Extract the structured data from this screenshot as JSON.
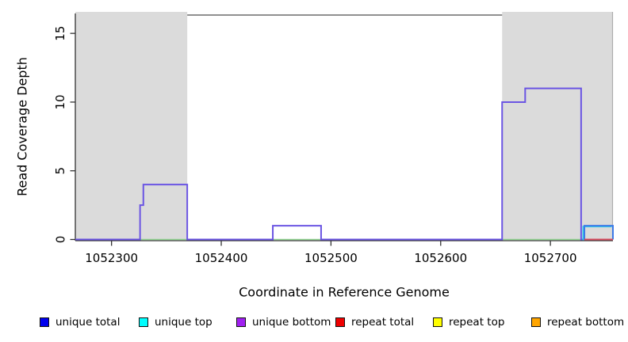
{
  "chart_data": {
    "type": "line",
    "subtype": "step-coverage",
    "title": "",
    "xlabel": "Coordinate in Reference Genome",
    "ylabel": "Read Coverage Depth",
    "xlim": [
      1052267,
      1052757
    ],
    "ylim": [
      0,
      16.45
    ],
    "x_ticks": [
      1052300,
      1052400,
      1052500,
      1052600,
      1052700
    ],
    "y_ticks": [
      0,
      5,
      10,
      15
    ],
    "grid": "off",
    "shaded_region_color": "#dbdbdb",
    "shaded_regions": [
      {
        "x0": 1052267,
        "x1": 1052369
      },
      {
        "x0": 1052656,
        "x1": 1052757
      }
    ],
    "series": [
      {
        "name": "zero-baseline-accent-1",
        "color": "#8fd38f",
        "width": 1.5,
        "points": [
          [
            1052326,
            0
          ],
          [
            1052369,
            0
          ]
        ]
      },
      {
        "name": "zero-baseline-accent-2",
        "color": "#8fd38f",
        "width": 1.5,
        "points": [
          [
            1052447,
            0
          ],
          [
            1052491,
            0
          ]
        ]
      },
      {
        "name": "zero-baseline-accent-3",
        "color": "#8fd38f",
        "width": 1.5,
        "points": [
          [
            1052656,
            0
          ],
          [
            1052728,
            0
          ]
        ]
      },
      {
        "name": "unique bottom",
        "color": "#6b55e3",
        "width": 2,
        "points": [
          [
            1052267,
            0
          ],
          [
            1052326,
            0
          ],
          [
            1052326,
            2.5
          ],
          [
            1052329,
            2.5
          ],
          [
            1052329,
            4
          ],
          [
            1052369,
            4
          ],
          [
            1052369,
            0
          ],
          [
            1052447,
            0
          ],
          [
            1052447,
            1
          ],
          [
            1052491,
            1
          ],
          [
            1052491,
            0
          ],
          [
            1052656,
            0
          ],
          [
            1052656,
            10
          ],
          [
            1052677,
            10
          ],
          [
            1052677,
            11
          ],
          [
            1052728,
            11
          ],
          [
            1052728,
            0
          ],
          [
            1052757,
            0
          ]
        ]
      },
      {
        "name": "unique top",
        "color": "#33cde8",
        "width": 2,
        "offset": [
          -1.5,
          1
        ],
        "points": [
          [
            1052731,
            0
          ],
          [
            1052731,
            1
          ],
          [
            1052757,
            1
          ]
        ]
      },
      {
        "name": "unique total",
        "color": "#3d7ae8",
        "width": 2,
        "points": [
          [
            1052731,
            0
          ],
          [
            1052731,
            1
          ],
          [
            1052757,
            1
          ],
          [
            1052757,
            0
          ]
        ]
      },
      {
        "name": "repeat total",
        "color": "#d84e60",
        "width": 2,
        "points": [
          [
            1052731,
            0
          ],
          [
            1052757,
            0
          ]
        ]
      }
    ],
    "legend_position": "bottom",
    "legend": [
      {
        "label": "unique total",
        "color": "#0000ee"
      },
      {
        "label": "unique top",
        "color": "#00ffff"
      },
      {
        "label": "unique bottom",
        "color": "#a020f0"
      },
      {
        "label": "repeat total",
        "color": "#ee0000"
      },
      {
        "label": "repeat top",
        "color": "#ffff00"
      },
      {
        "label": "repeat bottom",
        "color": "#ffa500"
      }
    ],
    "axis_color": "#333333",
    "box_top_color": "#4d4d4d",
    "box_right_color": "#adadad"
  }
}
